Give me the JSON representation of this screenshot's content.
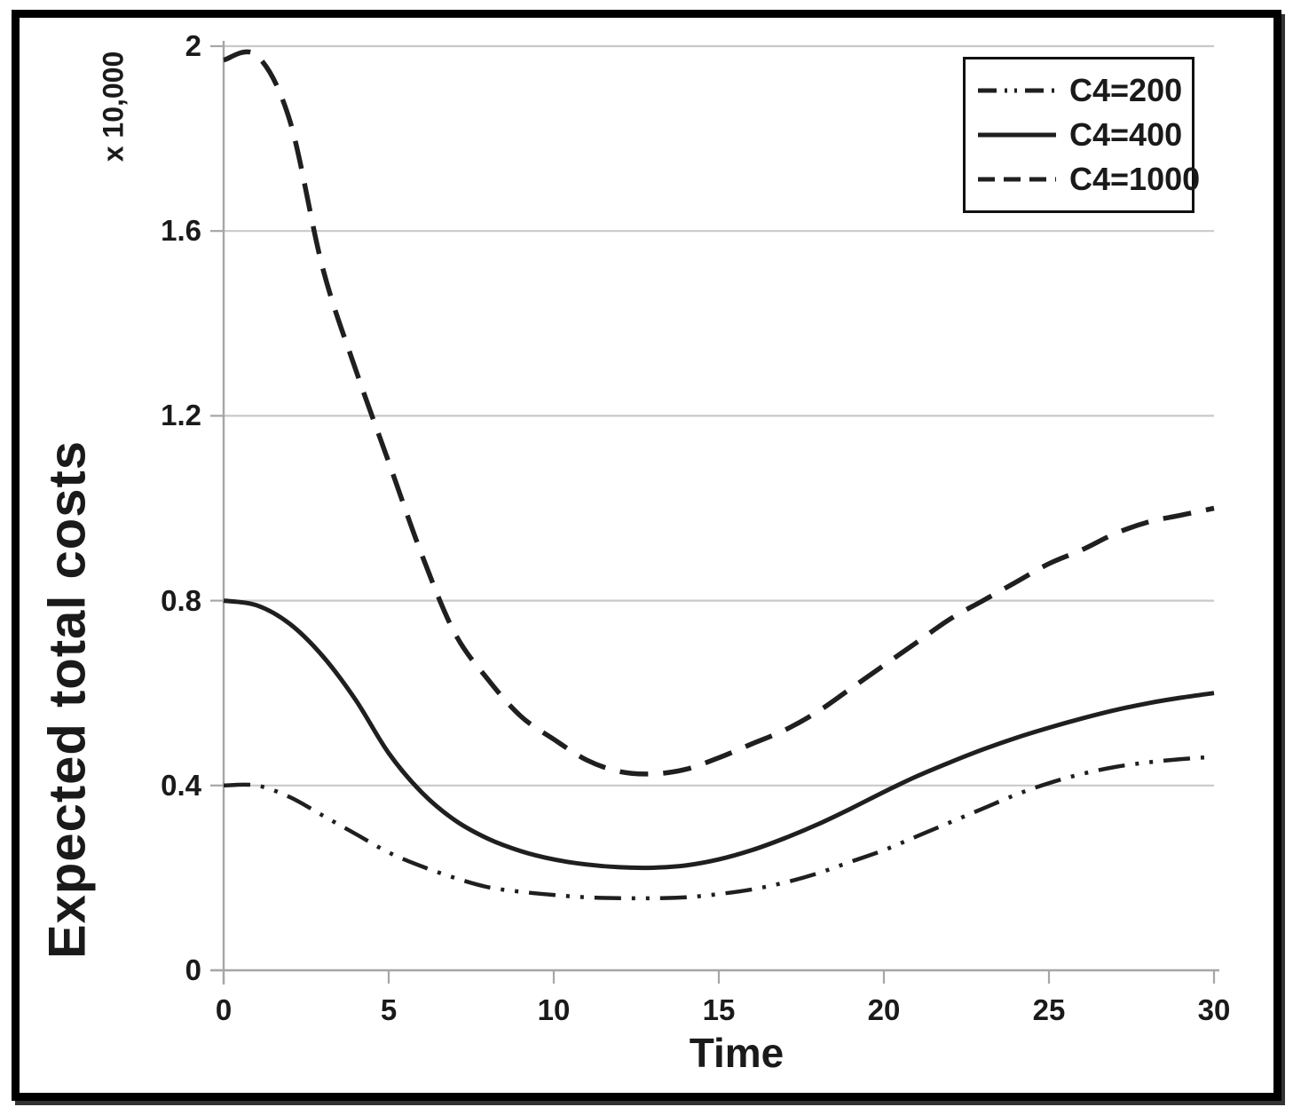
{
  "chart_data": {
    "type": "line",
    "title": "",
    "xlabel": "Time",
    "ylabel": "Expected total costs",
    "y_display_unit": "x 10,000",
    "xlim": [
      0,
      30
    ],
    "ylim": [
      0,
      2
    ],
    "x_ticks": [
      0,
      5,
      10,
      15,
      20,
      25,
      30
    ],
    "y_ticks": [
      0,
      0.4,
      0.8,
      1.2,
      1.6,
      2
    ],
    "y_tick_labels": [
      "0",
      "0.4",
      "0.8",
      "1.2",
      "1.6",
      "2"
    ],
    "grid": "horizontal",
    "legend_position": "top-right",
    "x": [
      0,
      1,
      2,
      3,
      4,
      5,
      6,
      7,
      8,
      9,
      10,
      11,
      12,
      13,
      14,
      15,
      16,
      17,
      18,
      19,
      20,
      21,
      22,
      23,
      24,
      25,
      26,
      27,
      28,
      29,
      30
    ],
    "series": [
      {
        "name": "C4=200",
        "style": "dash-dot-dot",
        "values": [
          0.4,
          0.4,
          0.375,
          0.335,
          0.295,
          0.255,
          0.225,
          0.2,
          0.18,
          0.17,
          0.163,
          0.158,
          0.156,
          0.156,
          0.158,
          0.165,
          0.175,
          0.19,
          0.21,
          0.235,
          0.26,
          0.29,
          0.32,
          0.35,
          0.38,
          0.405,
          0.425,
          0.44,
          0.45,
          0.457,
          0.462
        ]
      },
      {
        "name": "C4=400",
        "style": "solid",
        "values": [
          0.8,
          0.79,
          0.75,
          0.68,
          0.585,
          0.47,
          0.385,
          0.325,
          0.285,
          0.258,
          0.24,
          0.229,
          0.223,
          0.222,
          0.227,
          0.24,
          0.26,
          0.286,
          0.316,
          0.35,
          0.386,
          0.42,
          0.45,
          0.478,
          0.503,
          0.525,
          0.545,
          0.563,
          0.578,
          0.59,
          0.6
        ]
      },
      {
        "name": "C4=1000",
        "style": "dashed",
        "values": [
          1.97,
          1.98,
          1.84,
          1.52,
          1.3,
          1.1,
          0.9,
          0.73,
          0.63,
          0.55,
          0.5,
          0.455,
          0.43,
          0.425,
          0.435,
          0.46,
          0.49,
          0.52,
          0.56,
          0.61,
          0.66,
          0.71,
          0.76,
          0.8,
          0.84,
          0.88,
          0.91,
          0.945,
          0.97,
          0.985,
          1.0
        ]
      }
    ],
    "colors": {
      "line": "#1f1f1f",
      "gridline": "#c9c9c9",
      "axis": "#a6a6a6",
      "text": "#1a1a1a",
      "legend_border": "#111111",
      "figure_border": "#000000",
      "background": "#ffffff"
    }
  }
}
